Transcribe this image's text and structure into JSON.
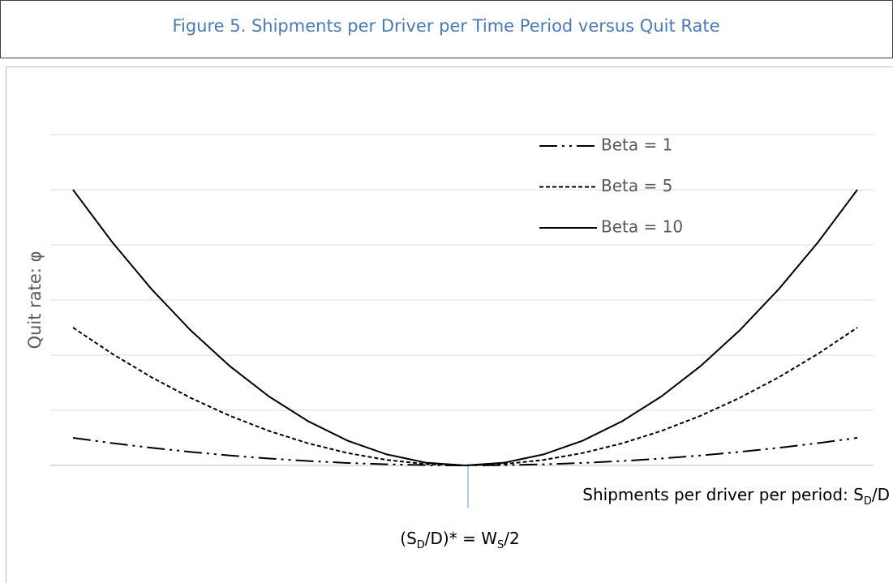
{
  "chart_data": {
    "type": "line",
    "title": "Figure 5. Shipments per Driver per Time Period versus Quit Rate",
    "y_label": "Quit rate: φ",
    "x_label_parts": [
      {
        "text": "Shipments per driver per period: S"
      },
      {
        "text": "D",
        "sub": true
      },
      {
        "text": "/D"
      }
    ],
    "annotation_parts": [
      {
        "text": "(S"
      },
      {
        "text": "D",
        "sub": true
      },
      {
        "text": "/D)* = W"
      },
      {
        "text": "S",
        "sub": true
      },
      {
        "text": "/2"
      }
    ],
    "categories": [
      null,
      null,
      null,
      null,
      null,
      null,
      null,
      null,
      null,
      null,
      null,
      null,
      null,
      null,
      null,
      null,
      null,
      null,
      null,
      null,
      null
    ],
    "ylim": [
      0,
      6
    ],
    "yticks": [
      0,
      1,
      2,
      3,
      4,
      5,
      6
    ],
    "grid": true,
    "legend": "top-right",
    "series": [
      {
        "name": "Beta = 1",
        "color": "#000000",
        "dash": "22 6 3 6 3 6",
        "values": [
          0.5,
          0.405,
          0.32,
          0.245,
          0.18,
          0.125,
          0.08,
          0.045,
          0.02,
          0.005,
          0,
          0.005,
          0.02,
          0.045,
          0.08,
          0.125,
          0.18,
          0.245,
          0.32,
          0.405,
          0.5
        ]
      },
      {
        "name": "Beta = 5",
        "color": "#000000",
        "dash": "5 3",
        "values": [
          2.5,
          2.025,
          1.6,
          1.225,
          0.9,
          0.625,
          0.4,
          0.225,
          0.1,
          0.025,
          0,
          0.025,
          0.1,
          0.225,
          0.4,
          0.625,
          0.9,
          1.225,
          1.6,
          2.025,
          2.5
        ]
      },
      {
        "name": "Beta = 10",
        "color": "#000000",
        "dash": "none",
        "values": [
          5,
          4.05,
          3.2,
          2.45,
          1.8,
          1.25,
          0.8,
          0.45,
          0.2,
          0.05,
          0,
          0.05,
          0.2,
          0.45,
          0.8,
          1.25,
          1.8,
          2.45,
          3.2,
          4.05,
          5
        ]
      }
    ]
  }
}
